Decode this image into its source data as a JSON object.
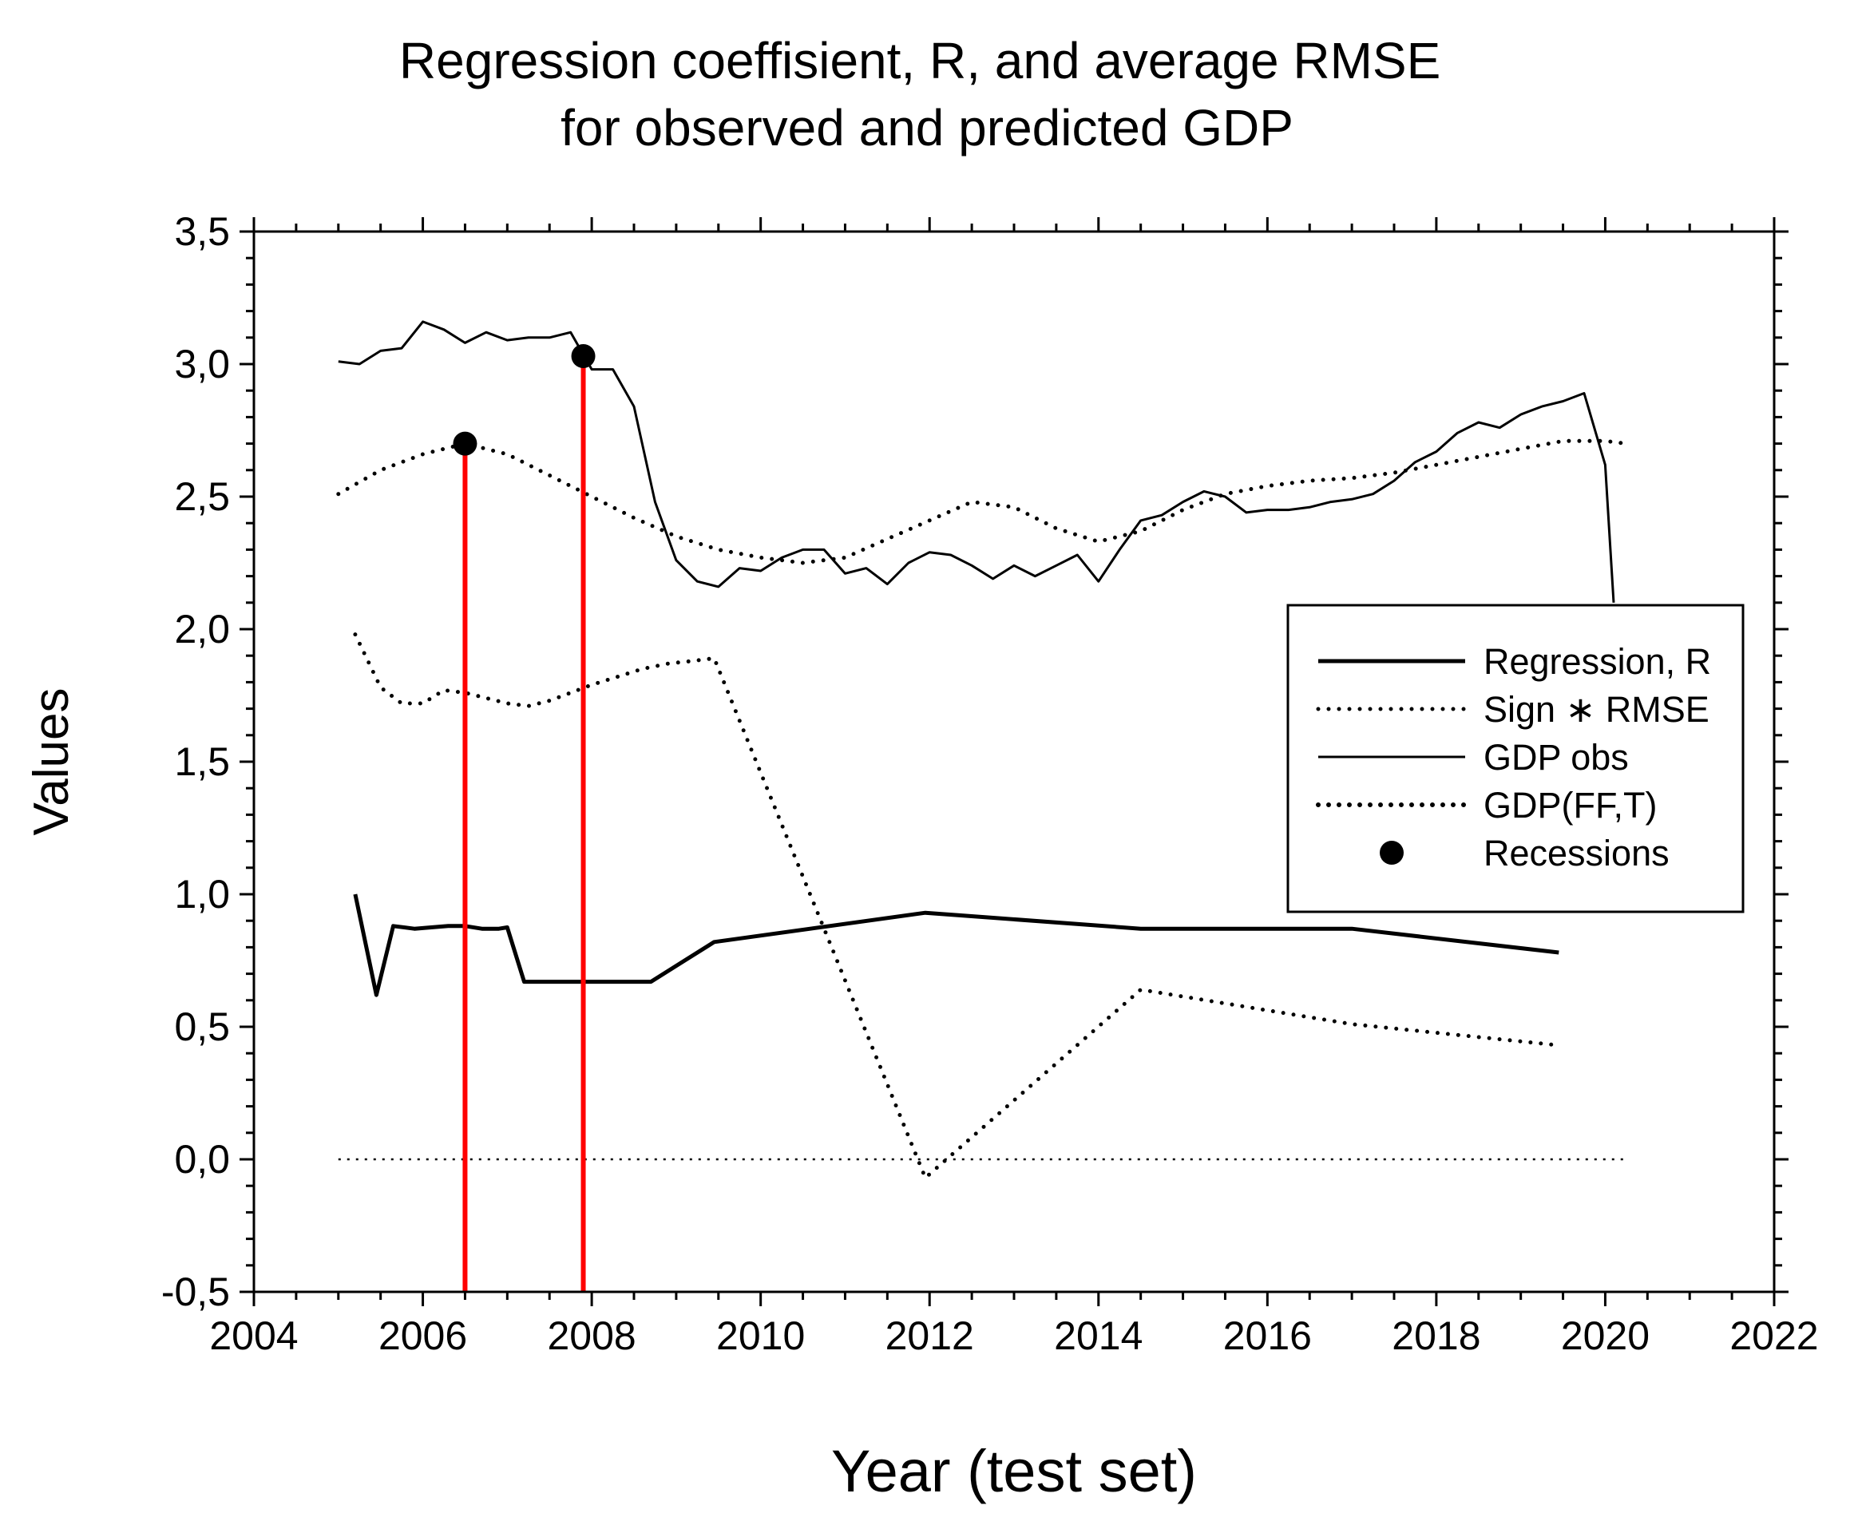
{
  "chart_data": {
    "type": "line",
    "title_lines": [
      "Regression coeffisient, R, and average RMSE",
      "for observed and predicted GDP"
    ],
    "xlabel": "Year (test set)",
    "ylabel": "Values",
    "xlim": [
      2004,
      2022
    ],
    "ylim": [
      -0.5,
      3.5
    ],
    "x_ticks": [
      2004,
      2006,
      2008,
      2010,
      2012,
      2014,
      2016,
      2018,
      2020,
      2022
    ],
    "x_tick_labels": [
      "2004",
      "2006",
      "2008",
      "2010",
      "2012",
      "2014",
      "2016",
      "2018",
      "2020",
      "2022"
    ],
    "y_ticks": [
      -0.5,
      0.0,
      0.5,
      1.0,
      1.5,
      2.0,
      2.5,
      3.0,
      3.5
    ],
    "y_tick_labels": [
      "-0,5",
      "0,0",
      "0,5",
      "1,0",
      "1,5",
      "2,0",
      "2,5",
      "3,0",
      "3,5"
    ],
    "grid": false,
    "legend_position": "right",
    "reference_line": {
      "y": 0.0,
      "style": "dotted"
    },
    "series": [
      {
        "name": "Regression, R",
        "style": "thick-solid",
        "x": [
          2005.2,
          2005.45,
          2005.65,
          2005.9,
          2006.1,
          2006.3,
          2006.5,
          2006.7,
          2006.9,
          2007.0,
          2007.2,
          2007.5,
          2007.8,
          2008.1,
          2008.4,
          2008.7,
          2009.1,
          2009.45,
          2011.95,
          2014.5,
          2017.0,
          2019.45
        ],
        "y": [
          1.0,
          0.62,
          0.88,
          0.87,
          0.875,
          0.88,
          0.88,
          0.87,
          0.87,
          0.875,
          0.67,
          0.67,
          0.67,
          0.67,
          0.67,
          0.67,
          0.75,
          0.82,
          0.93,
          0.87,
          0.87,
          0.78
        ]
      },
      {
        "name": "Sign ∗ RMSE",
        "style": "dotted",
        "x": [
          2005.2,
          2005.5,
          2005.75,
          2006.0,
          2006.25,
          2006.5,
          2006.75,
          2007.0,
          2007.25,
          2007.5,
          2007.75,
          2008.0,
          2008.3,
          2008.6,
          2008.9,
          2009.2,
          2009.45,
          2011.95,
          2014.5,
          2017.0,
          2019.45
        ],
        "y": [
          1.98,
          1.78,
          1.72,
          1.72,
          1.77,
          1.76,
          1.74,
          1.72,
          1.71,
          1.73,
          1.76,
          1.79,
          1.82,
          1.85,
          1.87,
          1.88,
          1.89,
          -0.07,
          0.64,
          0.51,
          0.43
        ]
      },
      {
        "name": "GDP obs",
        "style": "thin-solid",
        "x": [
          2005.0,
          2005.25,
          2005.5,
          2005.75,
          2006.0,
          2006.25,
          2006.5,
          2006.75,
          2007.0,
          2007.25,
          2007.5,
          2007.75,
          2008.0,
          2008.25,
          2008.5,
          2008.75,
          2009.0,
          2009.25,
          2009.5,
          2009.75,
          2010.0,
          2010.25,
          2010.5,
          2010.75,
          2011.0,
          2011.25,
          2011.5,
          2011.75,
          2012.0,
          2012.25,
          2012.5,
          2012.75,
          2013.0,
          2013.25,
          2013.5,
          2013.75,
          2014.0,
          2014.25,
          2014.5,
          2014.75,
          2015.0,
          2015.25,
          2015.5,
          2015.75,
          2016.0,
          2016.25,
          2016.5,
          2016.75,
          2017.0,
          2017.25,
          2017.5,
          2017.75,
          2018.0,
          2018.25,
          2018.5,
          2018.75,
          2019.0,
          2019.25,
          2019.5,
          2019.75,
          2020.0,
          2020.1
        ],
        "y": [
          3.01,
          3.0,
          3.05,
          3.06,
          3.16,
          3.13,
          3.08,
          3.12,
          3.09,
          3.1,
          3.1,
          3.12,
          2.98,
          2.98,
          2.84,
          2.48,
          2.26,
          2.18,
          2.16,
          2.23,
          2.22,
          2.27,
          2.3,
          2.3,
          2.21,
          2.23,
          2.17,
          2.25,
          2.29,
          2.28,
          2.24,
          2.19,
          2.24,
          2.2,
          2.24,
          2.28,
          2.18,
          2.3,
          2.41,
          2.43,
          2.48,
          2.52,
          2.5,
          2.44,
          2.45,
          2.45,
          2.46,
          2.48,
          2.49,
          2.51,
          2.56,
          2.63,
          2.67,
          2.74,
          2.78,
          2.76,
          2.81,
          2.84,
          2.86,
          2.89,
          2.62,
          2.1
        ]
      },
      {
        "name": "GDP(FF,T)",
        "style": "dotted",
        "x": [
          2005.0,
          2005.5,
          2006.0,
          2006.5,
          2007.0,
          2007.5,
          2008.0,
          2008.5,
          2009.0,
          2009.5,
          2010.0,
          2010.5,
          2011.0,
          2011.5,
          2012.0,
          2012.5,
          2013.0,
          2013.5,
          2014.0,
          2014.5,
          2015.0,
          2015.5,
          2016.0,
          2016.5,
          2017.0,
          2017.5,
          2018.0,
          2018.5,
          2019.0,
          2019.5,
          2020.0,
          2020.25
        ],
        "y": [
          2.51,
          2.6,
          2.66,
          2.7,
          2.66,
          2.58,
          2.5,
          2.42,
          2.35,
          2.3,
          2.27,
          2.25,
          2.27,
          2.34,
          2.41,
          2.48,
          2.46,
          2.38,
          2.33,
          2.37,
          2.45,
          2.51,
          2.54,
          2.56,
          2.57,
          2.59,
          2.62,
          2.65,
          2.68,
          2.71,
          2.71,
          2.7
        ]
      }
    ],
    "recessions": {
      "name": "Recessions",
      "points": [
        {
          "x": 2006.5,
          "y": 2.7
        },
        {
          "x": 2007.9,
          "y": 3.03
        }
      ],
      "line_color": "#ff0000",
      "marker_color": "#000000"
    },
    "legend": [
      {
        "label": "Regression, R",
        "style": "thick-solid"
      },
      {
        "label": "Sign ∗ RMSE",
        "style": "dotted"
      },
      {
        "label": "GDP obs",
        "style": "thin-solid"
      },
      {
        "label": "GDP(FF,T)",
        "style": "dotted-bold"
      },
      {
        "label": "Recessions",
        "style": "marker"
      }
    ]
  }
}
